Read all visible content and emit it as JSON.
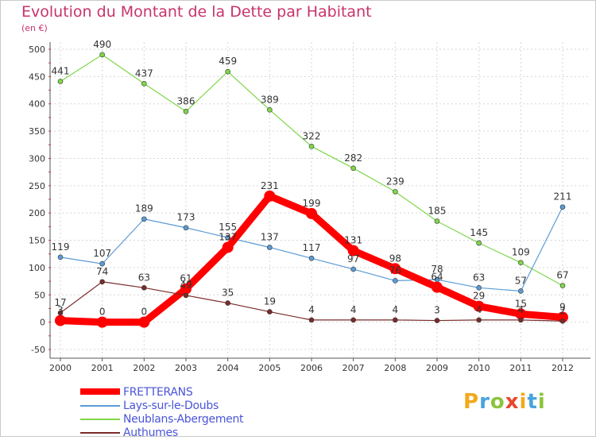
{
  "title": "Evolution du Montant de la Dette par Habitant",
  "subtitle": "(en €)",
  "logo": {
    "text": "Proxiti",
    "letters": [
      {
        "ch": "P",
        "color": "#f2a91b"
      },
      {
        "ch": "r",
        "color": "#48a3de"
      },
      {
        "ch": "o",
        "color": "#8cc43c"
      },
      {
        "ch": "x",
        "color": "#e8472b"
      },
      {
        "ch": "i",
        "color": "#f2a91b"
      },
      {
        "ch": "t",
        "color": "#48a3de"
      },
      {
        "ch": "i",
        "color": "#8cc43c"
      }
    ]
  },
  "chart_data": {
    "type": "line",
    "title": "Evolution du Montant de la Dette par Habitant",
    "subtitle": "(en €)",
    "x": [
      "2000",
      "2001",
      "2002",
      "2003",
      "2004",
      "2005",
      "2006",
      "2007",
      "2008",
      "2009",
      "2010",
      "2011",
      "2012"
    ],
    "ylim": [
      -50,
      500
    ],
    "yticks": [
      -50,
      0,
      50,
      100,
      150,
      200,
      250,
      300,
      350,
      400,
      450,
      500
    ],
    "grid": true,
    "legend_position": "bottom-left",
    "series": [
      {
        "name": "FRETTERANS",
        "color": "#ff0000",
        "values": [
          3,
          0,
          0,
          61,
          137,
          231,
          199,
          131,
          98,
          64,
          29,
          15,
          9
        ],
        "thick": true
      },
      {
        "name": "Lays-sur-le-Doubs",
        "color": "#5b9bd5",
        "values": [
          119,
          107,
          189,
          173,
          155,
          137,
          117,
          97,
          76,
          78,
          63,
          57,
          211
        ]
      },
      {
        "name": "Neublans-Abergement",
        "color": "#7fd64a",
        "values": [
          441,
          490,
          437,
          386,
          459,
          389,
          322,
          282,
          239,
          185,
          145,
          109,
          67
        ]
      },
      {
        "name": "Authumes",
        "color": "#7a2b2b",
        "values": [
          17,
          74,
          63,
          49,
          35,
          19,
          4,
          4,
          4,
          3,
          4,
          4,
          2
        ]
      }
    ]
  }
}
